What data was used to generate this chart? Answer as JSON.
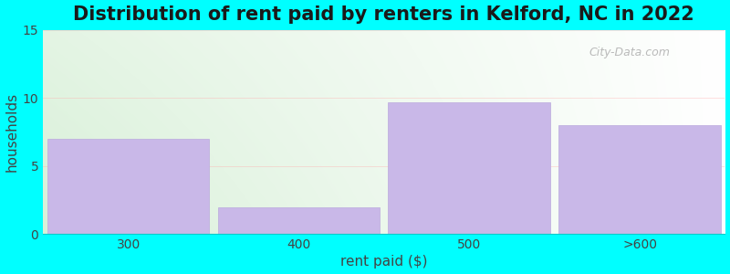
{
  "categories": [
    "300",
    "400",
    "500",
    ">600"
  ],
  "values": [
    7.0,
    2.0,
    9.7,
    8.0
  ],
  "bar_color": "#C9B8E8",
  "bar_edge_color": "#BBAADD",
  "title": "Distribution of rent paid by renters in Kelford, NC in 2022",
  "xlabel": "rent paid ($)",
  "ylabel": "households",
  "ylim": [
    0,
    15
  ],
  "yticks": [
    0,
    5,
    10,
    15
  ],
  "background_color": "#00FFFF",
  "plot_bg_color_left": "#D8F0D8",
  "plot_bg_color_right": "#FFFFFF",
  "title_fontsize": 15,
  "axis_label_fontsize": 11,
  "tick_fontsize": 10,
  "watermark": "City-Data.com"
}
